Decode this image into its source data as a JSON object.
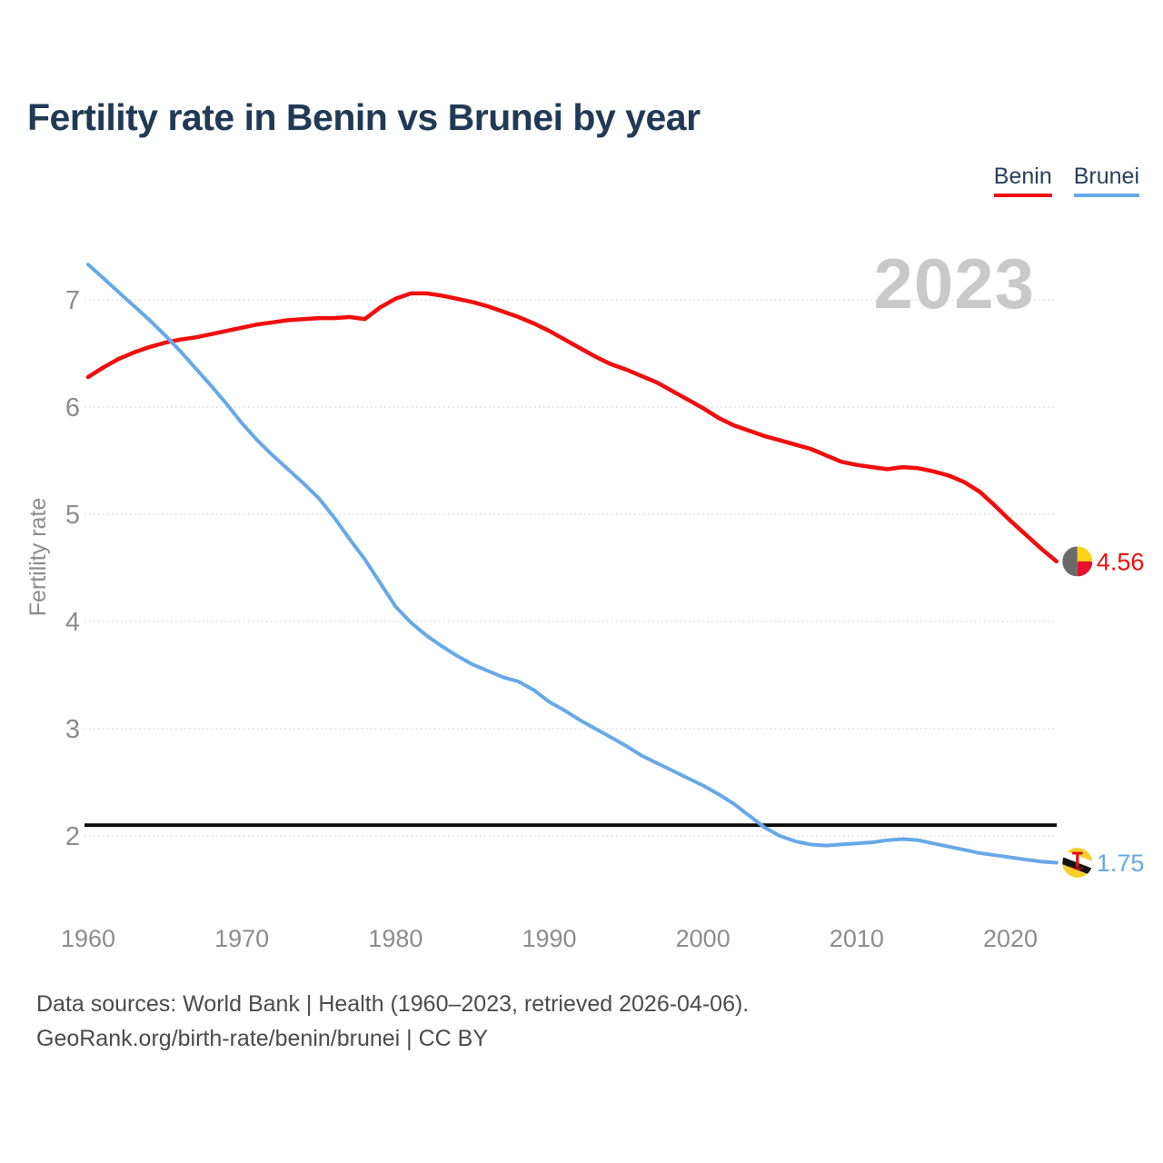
{
  "chart_data": {
    "type": "line",
    "title": "Fertility rate in Benin vs Brunei by year",
    "xlabel": "",
    "ylabel": "Fertility rate",
    "watermark": "2023",
    "xlim": [
      1960,
      2023
    ],
    "ylim": [
      1.45,
      7.5
    ],
    "grid": "horizontal-dotted",
    "legend_position": "top-right",
    "xticks": [
      1960,
      1970,
      1980,
      1990,
      2000,
      2010,
      2020
    ],
    "yticks": [
      2,
      3,
      4,
      5,
      6,
      7
    ],
    "x": [
      1960,
      1961,
      1962,
      1963,
      1964,
      1965,
      1966,
      1967,
      1968,
      1969,
      1970,
      1971,
      1972,
      1973,
      1974,
      1975,
      1976,
      1977,
      1978,
      1979,
      1980,
      1981,
      1982,
      1983,
      1984,
      1985,
      1986,
      1987,
      1988,
      1989,
      1990,
      1991,
      1992,
      1993,
      1994,
      1995,
      1996,
      1997,
      1998,
      1999,
      2000,
      2001,
      2002,
      2003,
      2004,
      2005,
      2006,
      2007,
      2008,
      2009,
      2010,
      2011,
      2012,
      2013,
      2014,
      2015,
      2016,
      2017,
      2018,
      2019,
      2020,
      2021,
      2022,
      2023
    ],
    "series": [
      {
        "name": "Benin",
        "color": "#f20d0d",
        "end_label": "4.56",
        "final_value": 4.56,
        "flag_icon": "benin-flag",
        "values": [
          6.28,
          6.37,
          6.45,
          6.51,
          6.56,
          6.6,
          6.63,
          6.65,
          6.68,
          6.71,
          6.74,
          6.77,
          6.79,
          6.81,
          6.82,
          6.83,
          6.83,
          6.84,
          6.82,
          6.93,
          7.01,
          7.06,
          7.06,
          7.04,
          7.01,
          6.98,
          6.94,
          6.89,
          6.84,
          6.78,
          6.71,
          6.63,
          6.55,
          6.47,
          6.4,
          6.35,
          6.29,
          6.23,
          6.15,
          6.07,
          5.99,
          5.9,
          5.83,
          5.78,
          5.73,
          5.69,
          5.65,
          5.61,
          5.55,
          5.49,
          5.46,
          5.44,
          5.42,
          5.44,
          5.43,
          5.4,
          5.36,
          5.3,
          5.21,
          5.08,
          4.94,
          4.81,
          4.68,
          4.56
        ]
      },
      {
        "name": "Brunei",
        "color": "#66a8e8",
        "end_label": "1.75",
        "final_value": 1.75,
        "flag_icon": "brunei-flag",
        "values": [
          7.33,
          7.2,
          7.07,
          6.94,
          6.81,
          6.67,
          6.52,
          6.36,
          6.2,
          6.03,
          5.85,
          5.69,
          5.55,
          5.42,
          5.29,
          5.15,
          4.97,
          4.77,
          4.58,
          4.36,
          4.14,
          3.99,
          3.87,
          3.77,
          3.68,
          3.6,
          3.54,
          3.48,
          3.44,
          3.36,
          3.25,
          3.17,
          3.08,
          3.0,
          2.92,
          2.84,
          2.75,
          2.68,
          2.61,
          2.54,
          2.47,
          2.39,
          2.3,
          2.19,
          2.08,
          2.0,
          1.95,
          1.92,
          1.91,
          1.92,
          1.93,
          1.94,
          1.96,
          1.97,
          1.96,
          1.93,
          1.9,
          1.87,
          1.84,
          1.82,
          1.8,
          1.78,
          1.76,
          1.75
        ]
      }
    ],
    "reference_line": {
      "value": 2.1,
      "color": "#0a0a0a"
    }
  },
  "footer": {
    "line1": "Data sources: World Bank | Health (1960–2023, retrieved 2026-04-06).",
    "line2": "GeoRank.org/birth-rate/benin/brunei | CC BY"
  },
  "palette": {
    "title_text": "#203a56",
    "legend_text": "#27405c",
    "axis_text": "#8c8c8c",
    "watermark_text": "#c9c9c9",
    "footer_text": "#4b4b4b",
    "gridline": "#dcdcdc",
    "background": "#ffffff"
  }
}
